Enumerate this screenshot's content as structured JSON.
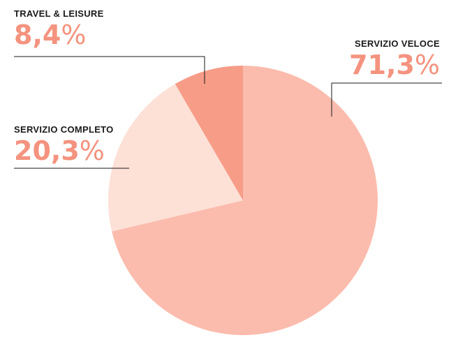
{
  "chart_data": {
    "type": "pie",
    "title": "",
    "slices": [
      {
        "label": "SERVIZIO VELOCE",
        "value": 71.3,
        "display_number": "71,3",
        "display_unit": "%",
        "color": "#fbbcad"
      },
      {
        "label": "SERVIZIO COMPLETO",
        "value": 20.3,
        "display_number": "20,3",
        "display_unit": "%",
        "color": "#fde0d6"
      },
      {
        "label": "TRAVEL & LEISURE",
        "value": 8.4,
        "display_number": "8,4",
        "display_unit": "%",
        "color": "#f69c87"
      }
    ],
    "start_angle_deg": 0,
    "direction": "clockwise",
    "label_color": "#f4937f",
    "leader_line_color": "#1a1a1a"
  }
}
